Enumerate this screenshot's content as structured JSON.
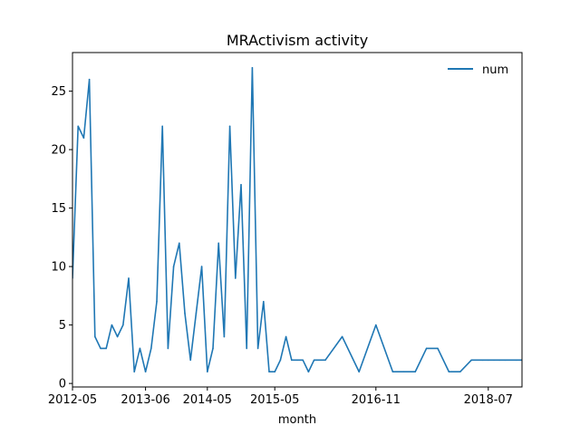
{
  "chart_data": {
    "type": "line",
    "title": "MRActivism activity",
    "xlabel": "month",
    "ylabel": "",
    "legend_position": "top-right",
    "grid": false,
    "xlim": [
      "2012-05",
      "2019-01"
    ],
    "ylim": [
      -0.3,
      28.3
    ],
    "x_ticks": [
      "2012-05",
      "2013-06",
      "2014-05",
      "2015-05",
      "2016-11",
      "2018-07"
    ],
    "y_ticks": [
      0,
      5,
      10,
      15,
      20,
      25
    ],
    "x": [
      "2012-05",
      "2012-06",
      "2012-07",
      "2012-08",
      "2012-09",
      "2012-10",
      "2012-11",
      "2012-12",
      "2013-01",
      "2013-02",
      "2013-03",
      "2013-04",
      "2013-05",
      "2013-06",
      "2013-07",
      "2013-08",
      "2013-09",
      "2013-10",
      "2013-11",
      "2013-12",
      "2014-01",
      "2014-02",
      "2014-03",
      "2014-04",
      "2014-05",
      "2014-06",
      "2014-07",
      "2014-08",
      "2014-09",
      "2014-10",
      "2014-11",
      "2014-12",
      "2015-01",
      "2015-02",
      "2015-03",
      "2015-04",
      "2015-05",
      "2015-06",
      "2015-07",
      "2015-08",
      "2015-09",
      "2015-10",
      "2015-11",
      "2015-12",
      "2016-02",
      "2016-05",
      "2016-08",
      "2016-11",
      "2017-02",
      "2017-04",
      "2017-06",
      "2017-08",
      "2017-10",
      "2017-12",
      "2018-02",
      "2018-04",
      "2018-06",
      "2018-07",
      "2018-08",
      "2018-09",
      "2018-10",
      "2018-12",
      "2019-01"
    ],
    "series": [
      {
        "name": "num",
        "color": "#1f77b4",
        "values": [
          9,
          22,
          21,
          26,
          4,
          3,
          3,
          5,
          4,
          5,
          9,
          1,
          3,
          1,
          3,
          7,
          22,
          3,
          10,
          12,
          6,
          2,
          6,
          10,
          1,
          3,
          12,
          4,
          22,
          9,
          17,
          3,
          27,
          3,
          7,
          1,
          1,
          2,
          4,
          2,
          2,
          2,
          1,
          2,
          2,
          4,
          1,
          5,
          1,
          1,
          1,
          3,
          3,
          1,
          1,
          2,
          2,
          2,
          2,
          2,
          2,
          2,
          2
        ]
      }
    ]
  }
}
